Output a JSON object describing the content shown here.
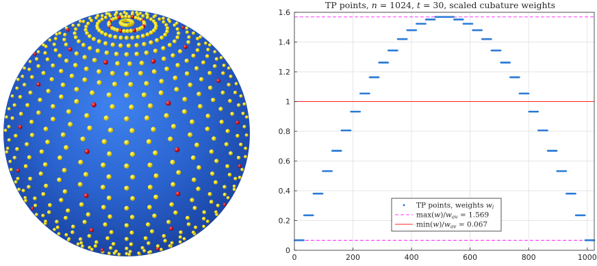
{
  "sphere_figure": {
    "surface_color": "#2a63cf",
    "regular_point_color": "#f2e21a",
    "highlight_point_color": "#d8101a"
  },
  "chart_data": {
    "type": "scatter",
    "title_parts": [
      "TP points, ",
      "n",
      " = 1024, ",
      "t",
      " = 30, scaled cubature weights"
    ],
    "xlim": [
      0,
      1024
    ],
    "ylim": [
      0,
      1.6
    ],
    "xticks": [
      0,
      200,
      400,
      600,
      800,
      1000
    ],
    "yticks": [
      0,
      0.2,
      0.4,
      0.6,
      0.8,
      1,
      1.2,
      1.4,
      1.6
    ],
    "ytick_labels": [
      "0",
      "0.2",
      "0.4",
      "0.6",
      "0.8",
      "1",
      "1.2",
      "1.4",
      "1.6"
    ],
    "grid": true,
    "legend_location": "bottom-center",
    "series": [
      {
        "name": "TP points, weights w_i",
        "kind": "points",
        "color": "#2b7bd6",
        "band_width": 32,
        "band_values": [
          0.067,
          0.235,
          0.381,
          0.532,
          0.669,
          0.806,
          0.932,
          1.054,
          1.163,
          1.262,
          1.343,
          1.42,
          1.48,
          1.523,
          1.552,
          1.569,
          1.569,
          1.552,
          1.523,
          1.48,
          1.42,
          1.343,
          1.262,
          1.163,
          1.054,
          0.932,
          0.806,
          0.669,
          0.532,
          0.381,
          0.235,
          0.067
        ]
      },
      {
        "name": "max(w)/w_av = 1.569",
        "kind": "hline",
        "value": 1.569,
        "color": "#ff33ff",
        "dashed": true
      },
      {
        "name": "min(w)/w_av = 0.067",
        "kind": "hline",
        "value": 0.067,
        "color": "#ff33ff",
        "dashed": true
      },
      {
        "name": "",
        "kind": "hline",
        "value": 1,
        "color": "#ff2222",
        "dashed": false
      }
    ],
    "legend": [
      {
        "parts": [
          "TP points, weights ",
          "w",
          "i"
        ],
        "marker": "dot",
        "color": "#2b7bd6"
      },
      {
        "parts": [
          "max(",
          "w",
          ")/",
          "w",
          "av",
          " = 1.569"
        ],
        "marker": "dash",
        "color": "#ff33ff"
      },
      {
        "parts": [
          "min(",
          "w",
          ")/",
          "w",
          "av",
          " = 0.067"
        ],
        "marker": "solid",
        "color": "#ff2222"
      }
    ]
  }
}
